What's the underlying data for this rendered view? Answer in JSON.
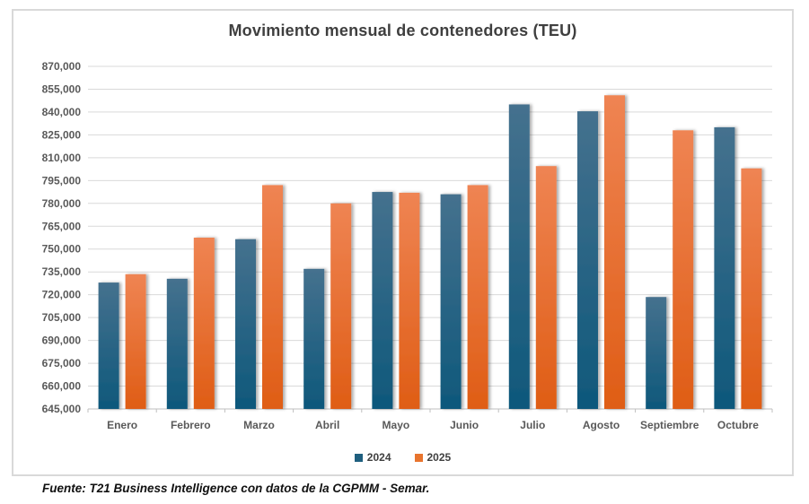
{
  "title": "Movimiento mensual de contenedores (TEU)",
  "footer": "Fuente: T21 Business Intelligence con datos de la CGPMM - Semar.",
  "colors": {
    "grid": "#d9d9d9",
    "axis": "#bfbfbf",
    "tick_label": "#595959",
    "title": "#3f3f3f",
    "series_2024_top": "#45718E",
    "series_2024_bottom": "#0E587B",
    "series_2025_top": "#EF8453",
    "series_2025_bottom": "#DF5D15",
    "legend_2024": "#1F5F7F",
    "legend_2025": "#E8742E"
  },
  "chart_data": {
    "type": "bar",
    "title": "Movimiento mensual de contenedores (TEU)",
    "categories": [
      "Enero",
      "Febrero",
      "Marzo",
      "Abril",
      "Mayo",
      "Junio",
      "Julio",
      "Agosto",
      "Septiembre",
      "Octubre"
    ],
    "series": [
      {
        "name": "2024",
        "values": [
          728000,
          730500,
          756500,
          737000,
          787500,
          786000,
          845000,
          840500,
          718500,
          830000
        ]
      },
      {
        "name": "2025",
        "values": [
          733500,
          757500,
          792000,
          780000,
          787000,
          792000,
          804500,
          851000,
          828000,
          803000
        ]
      }
    ],
    "xlabel": "",
    "ylabel": "",
    "ylim": [
      645000,
      870000
    ],
    "ytick_step": 15000,
    "ytick_labels": [
      "645,000",
      "660,000",
      "675,000",
      "690,000",
      "705,000",
      "720,000",
      "735,000",
      "750,000",
      "765,000",
      "780,000",
      "795,000",
      "810,000",
      "825,000",
      "840,000",
      "855,000",
      "870,000"
    ],
    "grid": true,
    "legend_position": "bottom"
  }
}
